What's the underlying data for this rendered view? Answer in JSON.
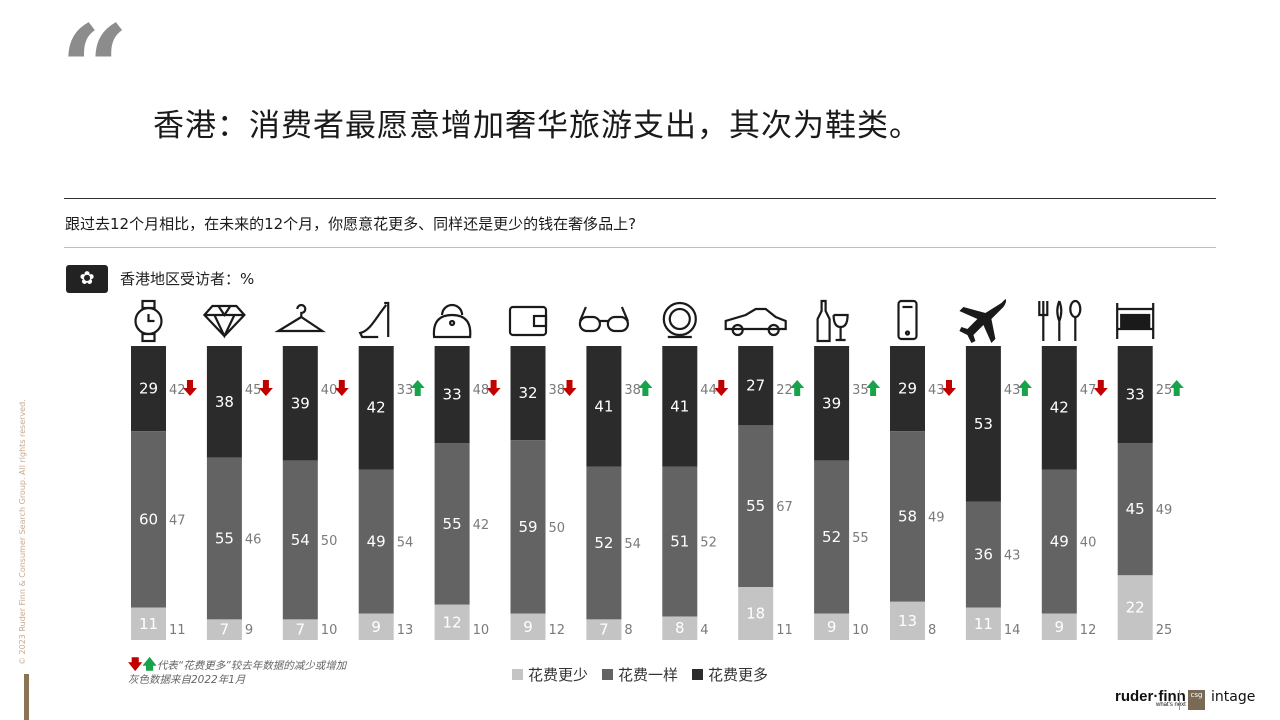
{
  "quote_mark": "“",
  "title": "香港：消费者最愿意增加奢华旅游支出，其次为鞋类。",
  "question": "跟过去12个月相比，在未来的12个月，你愿意花更多、同样还是更少的钱在奢侈品上?",
  "flag_icon": "hong-kong-flag-icon",
  "region_label": "香港地区受访者：%",
  "side_copyright": "© 2023 Ruder Finn & Consumer Search Group. All rights reserved.",
  "notes": {
    "arrows_note": "代表“花费更多”较去年数据的减少或增加",
    "grey_note": "灰色数据来自2022年1月"
  },
  "legend": [
    {
      "label": "花费更少",
      "color": "#c4c4c4"
    },
    {
      "label": "花费一样",
      "color": "#636363"
    },
    {
      "label": "花费更多",
      "color": "#2b2b2b"
    }
  ],
  "logos": {
    "ruderfinn": "ruder·finn",
    "ruderfinn_tag": "what's next",
    "csg": "csg",
    "intage": "intage"
  },
  "colors": {
    "more": "#2b2b2b",
    "same": "#636363",
    "less": "#c4c4c4",
    "up": "#16a34a",
    "down": "#c00000",
    "prev": "#7a7a7a"
  },
  "chart_data": {
    "type": "bar",
    "stacked": true,
    "stack_order_bottom_to_top": [
      "花费更少",
      "花费一样",
      "花费更多"
    ],
    "categories": [
      "watch-icon",
      "diamond-icon",
      "hanger-icon",
      "high-heel-icon",
      "handbag-icon",
      "wallet-icon",
      "glasses-icon",
      "compact-mirror-icon",
      "car-icon",
      "wine-icon",
      "phone-icon",
      "airplane-icon",
      "cutlery-icon",
      "bed-icon"
    ],
    "series": [
      {
        "name": "花费更少",
        "values": [
          11,
          7,
          7,
          9,
          12,
          9,
          7,
          8,
          18,
          9,
          13,
          11,
          9,
          22
        ],
        "prev_2022": [
          11,
          9,
          10,
          13,
          10,
          12,
          8,
          4,
          11,
          10,
          8,
          14,
          12,
          25
        ]
      },
      {
        "name": "花费一样",
        "values": [
          60,
          55,
          54,
          49,
          55,
          59,
          52,
          51,
          55,
          52,
          58,
          36,
          49,
          45
        ],
        "prev_2022": [
          47,
          46,
          50,
          54,
          42,
          50,
          54,
          52,
          67,
          55,
          49,
          43,
          40,
          49
        ]
      },
      {
        "name": "花费更多",
        "values": [
          29,
          38,
          39,
          42,
          33,
          32,
          41,
          41,
          27,
          39,
          29,
          53,
          42,
          33
        ],
        "prev_2022": [
          42,
          45,
          40,
          33,
          48,
          38,
          38,
          44,
          22,
          35,
          43,
          43,
          47,
          25
        ]
      }
    ],
    "more_trend": [
      "down",
      "down",
      "down",
      "up",
      "down",
      "down",
      "up",
      "down",
      "up",
      "up",
      "down",
      "up",
      "down",
      "up"
    ],
    "unit": "%",
    "ylim": [
      0,
      100
    ]
  }
}
